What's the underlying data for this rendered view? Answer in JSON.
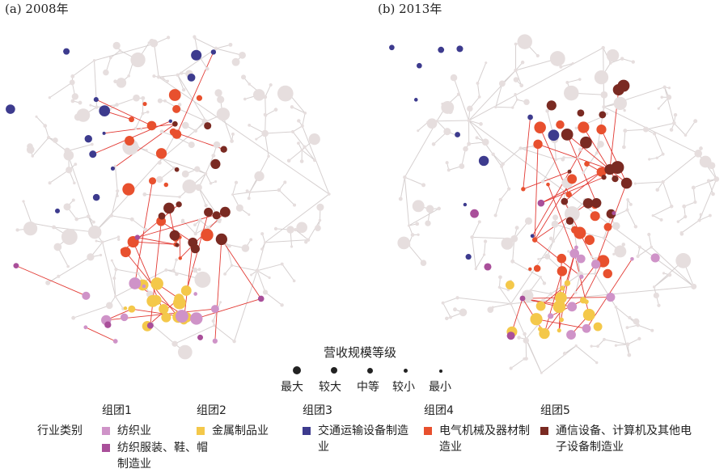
{
  "panels": [
    {
      "title": "(a) 2008年"
    },
    {
      "title": "(b) 2013年"
    }
  ],
  "size_legend": {
    "title": "营收规模等级",
    "levels": [
      "最大",
      "较大",
      "中等",
      "较小",
      "最小"
    ]
  },
  "category_legend": {
    "row_label": "行业类别",
    "groups": [
      {
        "name": "组团1",
        "items": [
          {
            "label": "纺织业",
            "color": "#cf93c8"
          },
          {
            "label": "纺织服装、鞋、帽制造业",
            "color": "#a94f9a"
          }
        ]
      },
      {
        "name": "组团2",
        "items": [
          {
            "label": "金属制品业",
            "color": "#f4c84a"
          }
        ]
      },
      {
        "name": "组团3",
        "items": [
          {
            "label": "交通运输设备制造业",
            "color": "#3d3b8e"
          }
        ]
      },
      {
        "name": "组团4",
        "items": [
          {
            "label": "电气机械及器材制造业",
            "color": "#e8502e"
          }
        ]
      },
      {
        "name": "组团5",
        "items": [
          {
            "label": "通信设备、计算机及其他电子设备制造业",
            "color": "#7a2a22"
          }
        ]
      }
    ],
    "other_color": "#e6dede",
    "edge_color": "#e23a34",
    "gray_edge_color": "#d6d0d0"
  }
}
